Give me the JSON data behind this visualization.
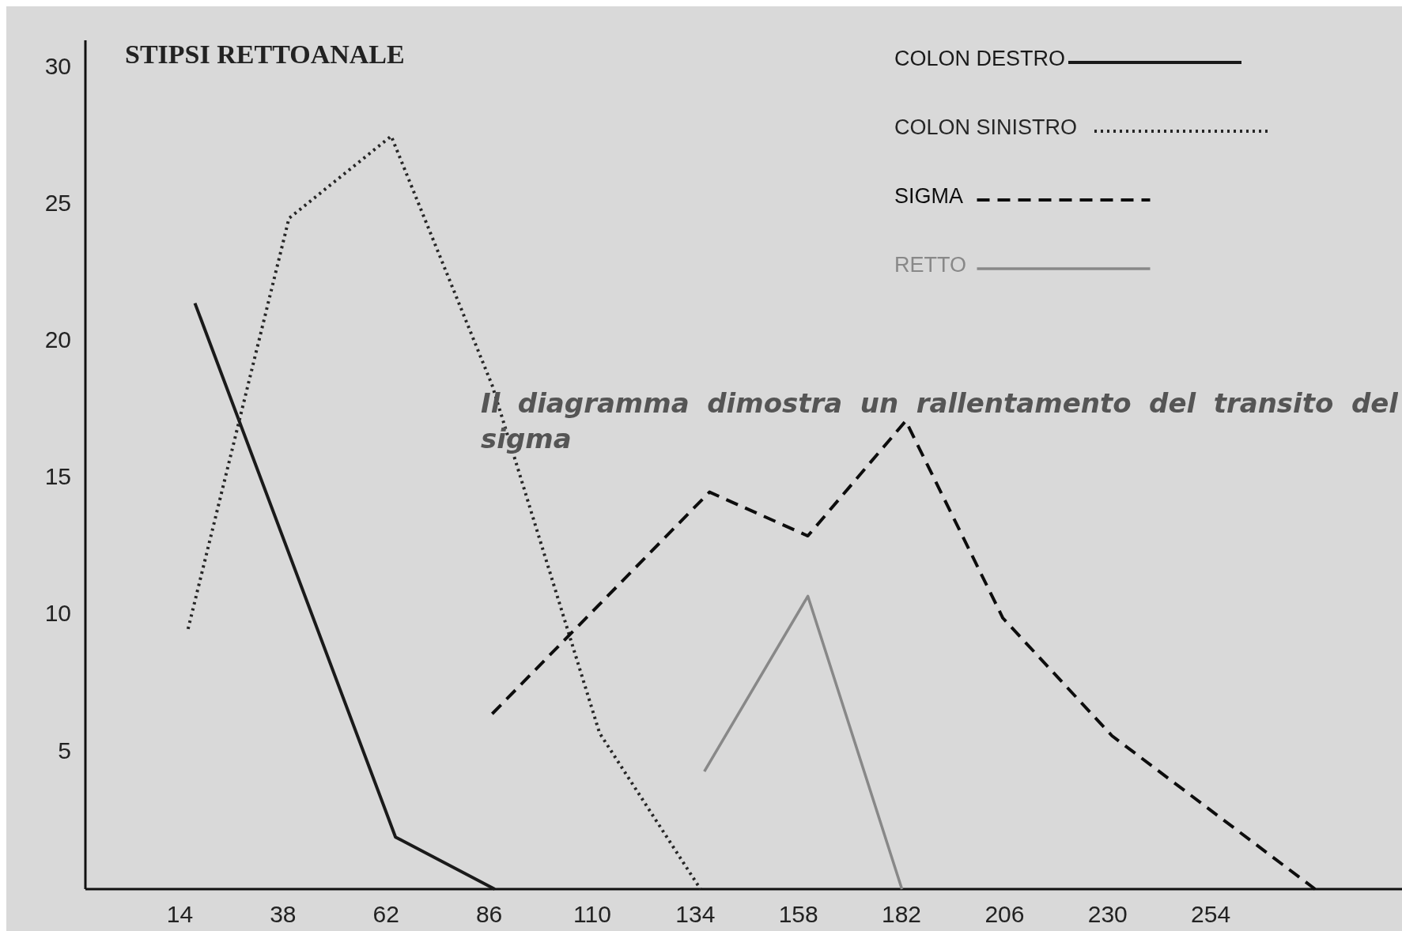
{
  "chart_data": {
    "type": "line",
    "title": "STIPSI RETTOANALE",
    "annotations": [
      "Il diagramma dimostra un rallentamento del transito del sigma"
    ],
    "xlim": [
      -8,
      300
    ],
    "ylim": [
      0,
      31
    ],
    "xticks": [
      14,
      38,
      62,
      86,
      110,
      134,
      158,
      182,
      206,
      230,
      254
    ],
    "yticks": [
      5,
      10,
      15,
      20,
      25,
      30
    ],
    "grid": false,
    "legend": "top right",
    "marker": "none",
    "series": [
      {
        "name": "COLON DESTRO",
        "color": "#1a1a1a",
        "line_style": "solid",
        "x": [
          17.5,
          64.2,
          87.3
        ],
        "values": [
          21.4,
          1.9,
          0
        ]
      },
      {
        "name": "COLON SINISTRO",
        "color": "#262626",
        "line_style": "dotted",
        "x": [
          15.9,
          39.4,
          63.2,
          86.7,
          111.7,
          135.2
        ],
        "values": [
          9.5,
          24.5,
          27.5,
          18.4,
          5.7,
          0
        ]
      },
      {
        "name": "SIGMA",
        "color": "#0d0d0d",
        "line_style": "dashed",
        "x": [
          86.7,
          137.3,
          160.2,
          183,
          205.6,
          231,
          278.3
        ],
        "values": [
          6.4,
          14.5,
          12.9,
          17.1,
          9.9,
          5.6,
          0
        ]
      },
      {
        "name": "RETTO",
        "color": "#888888",
        "line_style": "solid",
        "x": [
          136.1,
          160.2,
          182.1
        ],
        "values": [
          4.3,
          10.7,
          0
        ]
      }
    ]
  }
}
